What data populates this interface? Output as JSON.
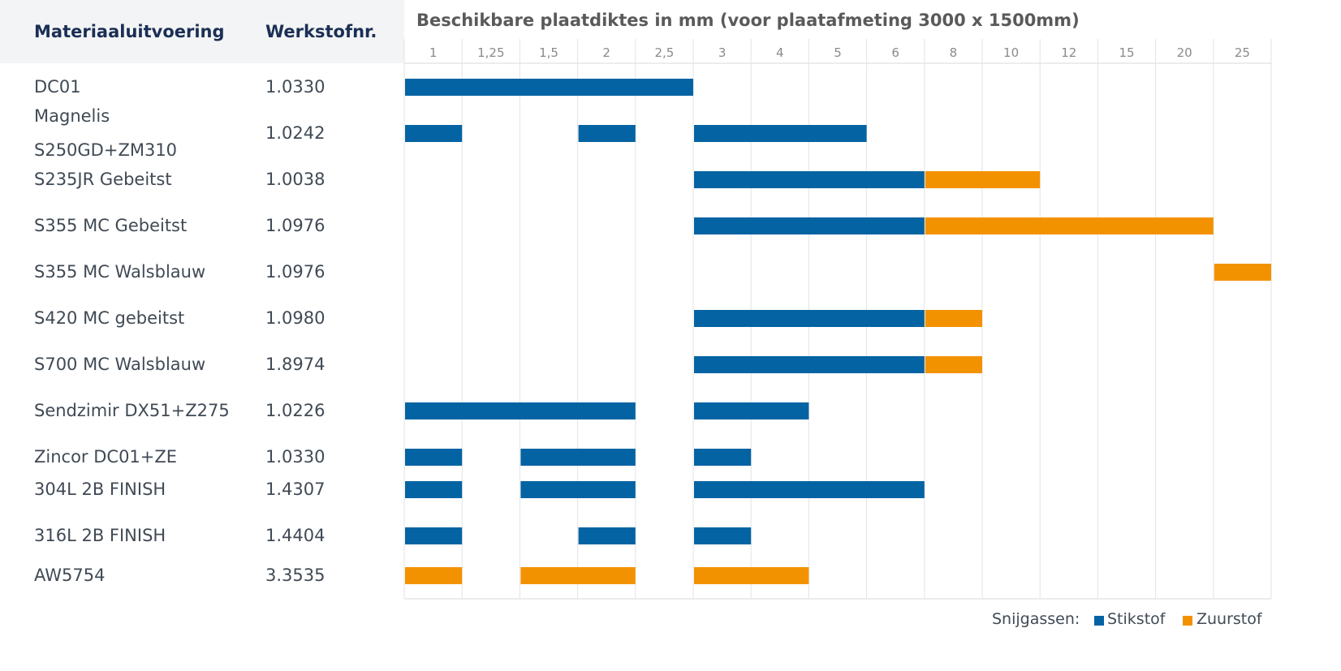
{
  "columns": {
    "material_header": "Materiaaluitvoering",
    "werkstof_header": "Werkstofnr."
  },
  "legend": {
    "label": "Snijgassen:",
    "items": [
      {
        "name": "Stikstof",
        "color": "#0463a3"
      },
      {
        "name": "Zuurstof",
        "color": "#f39200"
      }
    ]
  },
  "chart_data": {
    "type": "bar",
    "title": "Beschikbare plaatdiktes in mm (voor plaatafmeting 3000 x 1500mm)",
    "xlabel": "",
    "ylabel": "",
    "categories": [
      "1",
      "1,25",
      "1,5",
      "2",
      "2,5",
      "3",
      "4",
      "5",
      "6",
      "8",
      "10",
      "12",
      "15",
      "20",
      "25"
    ],
    "grid": true,
    "rows": [
      {
        "material": [
          "DC01"
        ],
        "werkstof": "1.0330",
        "segments": [
          {
            "from": "1",
            "to": "2,5",
            "gas": "Stikstof"
          }
        ]
      },
      {
        "material": [
          "Magnelis",
          "S250GD+ZM310"
        ],
        "werkstof": "1.0242",
        "segments": [
          {
            "from": "1",
            "to": "1",
            "gas": "Stikstof"
          },
          {
            "from": "2",
            "to": "2",
            "gas": "Stikstof"
          },
          {
            "from": "3",
            "to": "5",
            "gas": "Stikstof"
          }
        ]
      },
      {
        "material": [
          "S235JR Gebeitst"
        ],
        "werkstof": "1.0038",
        "segments": [
          {
            "from": "3",
            "to": "6",
            "gas": "Stikstof"
          },
          {
            "from": "8",
            "to": "10",
            "gas": "Zuurstof"
          }
        ]
      },
      {
        "material": [
          "S355 MC Gebeitst"
        ],
        "werkstof": "1.0976",
        "segments": [
          {
            "from": "3",
            "to": "6",
            "gas": "Stikstof"
          },
          {
            "from": "8",
            "to": "20",
            "gas": "Zuurstof"
          }
        ]
      },
      {
        "material": [
          "S355 MC Walsblauw"
        ],
        "werkstof": "1.0976",
        "segments": [
          {
            "from": "25",
            "to": "25",
            "gas": "Zuurstof"
          }
        ]
      },
      {
        "material": [
          "S420 MC gebeitst"
        ],
        "werkstof": "1.0980",
        "segments": [
          {
            "from": "3",
            "to": "6",
            "gas": "Stikstof"
          },
          {
            "from": "8",
            "to": "8",
            "gas": "Zuurstof"
          }
        ]
      },
      {
        "material": [
          "S700 MC Walsblauw"
        ],
        "werkstof": "1.8974",
        "segments": [
          {
            "from": "3",
            "to": "6",
            "gas": "Stikstof"
          },
          {
            "from": "8",
            "to": "8",
            "gas": "Zuurstof"
          }
        ]
      },
      {
        "material": [
          "Sendzimir DX51+Z275"
        ],
        "werkstof": "1.0226",
        "segments": [
          {
            "from": "1",
            "to": "2",
            "gas": "Stikstof"
          },
          {
            "from": "3",
            "to": "4",
            "gas": "Stikstof"
          }
        ]
      },
      {
        "material": [
          "Zincor DC01+ZE"
        ],
        "werkstof": "1.0330",
        "segments": [
          {
            "from": "1",
            "to": "1",
            "gas": "Stikstof"
          },
          {
            "from": "1,5",
            "to": "2",
            "gas": "Stikstof"
          },
          {
            "from": "3",
            "to": "3",
            "gas": "Stikstof"
          }
        ]
      },
      {
        "material": [
          "304L 2B FINISH"
        ],
        "werkstof": "1.4307",
        "segments": [
          {
            "from": "1",
            "to": "1",
            "gas": "Stikstof"
          },
          {
            "from": "1,5",
            "to": "2",
            "gas": "Stikstof"
          },
          {
            "from": "3",
            "to": "6",
            "gas": "Stikstof"
          }
        ]
      },
      {
        "material": [
          "316L 2B FINISH"
        ],
        "werkstof": "1.4404",
        "segments": [
          {
            "from": "1",
            "to": "1",
            "gas": "Stikstof"
          },
          {
            "from": "2",
            "to": "2",
            "gas": "Stikstof"
          },
          {
            "from": "3",
            "to": "3",
            "gas": "Stikstof"
          }
        ]
      },
      {
        "material": [
          "AW5754"
        ],
        "werkstof": "3.3535",
        "segments": [
          {
            "from": "1",
            "to": "1",
            "gas": "Zuurstof"
          },
          {
            "from": "1,5",
            "to": "2",
            "gas": "Zuurstof"
          },
          {
            "from": "3",
            "to": "4",
            "gas": "Zuurstof"
          }
        ]
      }
    ]
  }
}
